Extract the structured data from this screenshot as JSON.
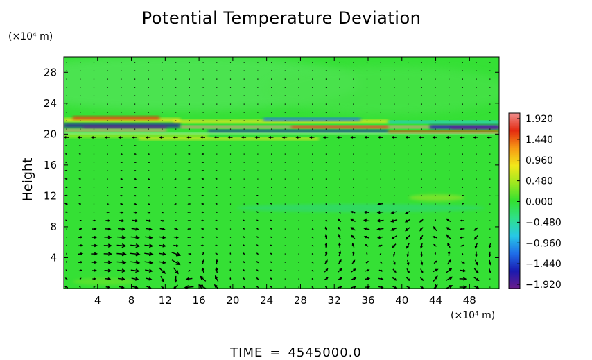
{
  "chart_data": [
    {
      "type": "heatmap",
      "title": "Potential Temperature Deviation",
      "ylabel": "Height",
      "x_unit": "(×10⁴ m)",
      "y_unit": "(×10⁴ m)",
      "xlim": [
        0,
        51.5
      ],
      "ylim": [
        0,
        30
      ],
      "x_ticks": [
        4,
        8,
        12,
        16,
        20,
        24,
        28,
        32,
        36,
        40,
        44,
        48
      ],
      "y_ticks": [
        4,
        8,
        12,
        16,
        20,
        24,
        28
      ],
      "colorbar": {
        "ticks": [
          "1.920",
          "1.440",
          "0.960",
          "0.480",
          "0.000",
          "−0.480",
          "−0.960",
          "−1.440",
          "−1.920"
        ],
        "range": [
          -1.92,
          1.92
        ],
        "colors": [
          "#6a1d8c",
          "#1a1ab0",
          "#1f6ee8",
          "#27c8e6",
          "#2fe08a",
          "#33e030",
          "#9ee820",
          "#f2e81a",
          "#f79a14",
          "#e42a10",
          "#ef8f8f"
        ]
      },
      "overlay": "wind vector arrows",
      "background_color": "#35e035"
    }
  ],
  "footer": {
    "time_label": "TIME",
    "equals": "=",
    "time_value": "4545000.0"
  }
}
